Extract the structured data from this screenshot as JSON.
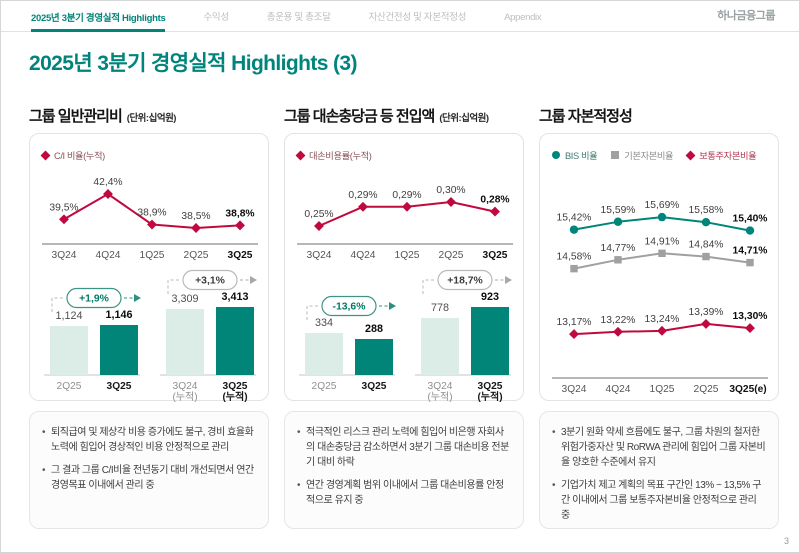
{
  "nav": {
    "tabs": [
      {
        "label": "2025년 3분기 경영실적 Highlights",
        "active": true
      },
      {
        "label": "수익성",
        "active": false
      },
      {
        "label": "총운용 및 총조달",
        "active": false
      },
      {
        "label": "자산건전성 및 자본적정성",
        "active": false
      },
      {
        "label": "Appendix",
        "active": false
      }
    ],
    "logo": "하나금융그룹"
  },
  "page_title": "2025년 3분기 경영실적 Highlights (3)",
  "page_number": "3",
  "colors": {
    "accent_teal": "#008578",
    "light_teal_bar": "#dcede8",
    "crimson": "#c00a3f",
    "gray_series": "#a0a0a0"
  },
  "chart_data": [
    {
      "type": "line+bar",
      "title": "그룹 일반관리비",
      "unit": "(단위:십억원)",
      "legend": [
        {
          "label": "C/I 비율(누적)",
          "marker": "diamond",
          "color": "#c00a3f",
          "text_color": "#8a545c"
        }
      ],
      "line": {
        "categories": [
          "3Q24",
          "4Q24",
          "1Q25",
          "2Q25",
          "3Q25"
        ],
        "series": [
          {
            "name": "C/I 비율(누적)",
            "marker": "diamond",
            "color": "#c00a3f",
            "values": [
              39.5,
              42.4,
              38.9,
              38.5,
              38.8
            ],
            "labels": [
              "39,5%",
              "42,4%",
              "38,9%",
              "38,5%",
              "38,8%"
            ]
          }
        ]
      },
      "bars": {
        "groups": [
          {
            "badge": "+1,9%",
            "badge_style": "accent",
            "bars": [
              {
                "label": "2Q25",
                "sub": "",
                "value": 1124,
                "display": "1,124",
                "tone": "light"
              },
              {
                "label": "3Q25",
                "sub": "",
                "value": 1146,
                "display": "1,146",
                "tone": "dark"
              }
            ]
          },
          {
            "badge": "+3,1%",
            "badge_style": "gray",
            "bars": [
              {
                "label": "3Q24",
                "sub": "(누적)",
                "value": 3309,
                "display": "3,309",
                "tone": "light"
              },
              {
                "label": "3Q25",
                "sub": "(누적)",
                "value": 3413,
                "display": "3,413",
                "tone": "dark"
              }
            ]
          }
        ]
      },
      "bullets": [
        "퇴직급여 및 제상각 비용 증가에도 불구, 경비 효율화 노력에 힘입어 경상적인 비용 안정적으로 관리",
        "그 결과 그룹 C/I비율 전년동기 대비 개선되면서 연간 경영목표 이내에서 관리 중"
      ]
    },
    {
      "type": "line+bar",
      "title": "그룹 대손충당금 등 전입액",
      "unit": "(단위:십억원)",
      "legend": [
        {
          "label": "대손비용률(누적)",
          "marker": "diamond",
          "color": "#c00a3f",
          "text_color": "#8a545c"
        }
      ],
      "line": {
        "categories": [
          "3Q24",
          "4Q24",
          "1Q25",
          "2Q25",
          "3Q25"
        ],
        "series": [
          {
            "name": "대손비용률(누적)",
            "marker": "diamond",
            "color": "#c00a3f",
            "values": [
              0.25,
              0.29,
              0.29,
              0.3,
              0.28
            ],
            "labels": [
              "0,25%",
              "0,29%",
              "0,29%",
              "0,30%",
              "0,28%"
            ]
          }
        ]
      },
      "bars": {
        "groups": [
          {
            "badge": "-13,6%",
            "badge_style": "accent",
            "bars": [
              {
                "label": "2Q25",
                "sub": "",
                "value": 334,
                "display": "334",
                "tone": "light"
              },
              {
                "label": "3Q25",
                "sub": "",
                "value": 288,
                "display": "288",
                "tone": "dark"
              }
            ]
          },
          {
            "badge": "+18,7%",
            "badge_style": "gray",
            "bars": [
              {
                "label": "3Q24",
                "sub": "(누적)",
                "value": 778,
                "display": "778",
                "tone": "light"
              },
              {
                "label": "3Q25",
                "sub": "(누적)",
                "value": 923,
                "display": "923",
                "tone": "dark"
              }
            ]
          }
        ]
      },
      "bullets": [
        "적극적인 리스크 관리 노력에 힘입어 비은행 자회사의 대손충당금 감소하면서 3분기 그룹 대손비용 전분기 대비 하락",
        "연간 경영계획 범위 이내에서 그룹 대손비용률 안정적으로 유지 중"
      ]
    },
    {
      "type": "line",
      "title": "그룹 자본적정성",
      "unit": "",
      "legend": [
        {
          "label": "BIS 비율",
          "marker": "circle",
          "color": "#00857a",
          "text_color": "#3e7a72"
        },
        {
          "label": "기본자본비율",
          "marker": "square",
          "color": "#a0a0a0",
          "text_color": "#8f8f8f"
        },
        {
          "label": "보통주자본비율",
          "marker": "diamond",
          "color": "#c00a3f",
          "text_color": "#b53a52"
        }
      ],
      "line": {
        "categories": [
          "3Q24",
          "4Q24",
          "1Q25",
          "2Q25",
          "3Q25(e)"
        ],
        "series": [
          {
            "name": "BIS 비율",
            "marker": "circle",
            "color": "#00857a",
            "values": [
              15.42,
              15.59,
              15.69,
              15.58,
              15.4
            ],
            "labels": [
              "15,42%",
              "15,59%",
              "15,69%",
              "15,58%",
              "15,40%"
            ]
          },
          {
            "name": "기본자본비율",
            "marker": "square",
            "color": "#a0a0a0",
            "values": [
              14.58,
              14.77,
              14.91,
              14.84,
              14.71
            ],
            "labels": [
              "14,58%",
              "14,77%",
              "14,91%",
              "14,84%",
              "14,71%"
            ]
          },
          {
            "name": "보통주자본비율",
            "marker": "diamond",
            "color": "#c00a3f",
            "values": [
              13.17,
              13.22,
              13.24,
              13.39,
              13.3
            ],
            "labels": [
              "13,17%",
              "13,22%",
              "13,24%",
              "13,39%",
              "13,30%"
            ]
          }
        ]
      },
      "bullets": [
        "3분기 원화 약세 흐름에도 불구, 그룹 차원의 철저한 위험가중자산 및 RoRWA 관리에 힘입어 그룹 자본비율 양호한 수준에서 유지",
        "기업가치 제고 계획의 목표 구간인 13% ~ 13,5% 구간 이내에서 그룹 보통주자본비율 안정적으로 관리 중"
      ]
    }
  ]
}
